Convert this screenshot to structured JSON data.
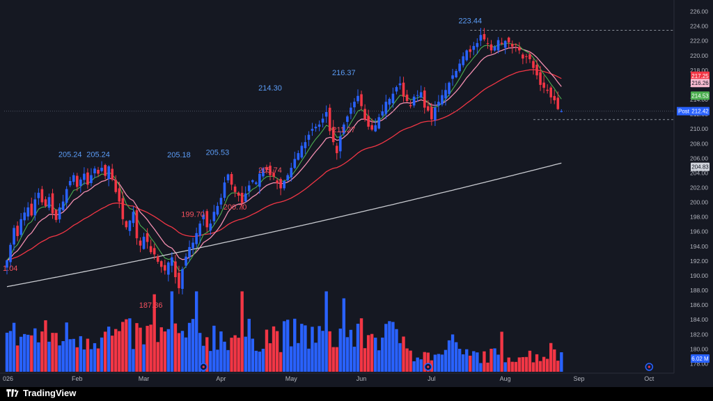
{
  "chart_data": {
    "type": "candlestick",
    "title": "",
    "ylim": [
      177,
      227
    ],
    "y_ticks": [
      "226.00",
      "224.00",
      "222.00",
      "220.00",
      "218.00",
      "216.00",
      "214.00",
      "212.00",
      "210.00",
      "208.00",
      "206.00",
      "204.00",
      "202.00",
      "200.00",
      "198.00",
      "196.00",
      "194.00",
      "192.00",
      "190.00",
      "188.00",
      "186.00",
      "184.00",
      "182.00",
      "180.00",
      "178.00"
    ],
    "x_ticks": [
      {
        "label": "026",
        "i": 0
      },
      {
        "label": "Feb",
        "i": 20
      },
      {
        "label": "Mar",
        "i": 39
      },
      {
        "label": "Apr",
        "i": 61
      },
      {
        "label": "May",
        "i": 81
      },
      {
        "label": "Jun",
        "i": 101
      },
      {
        "label": "Jul",
        "i": 121
      },
      {
        "label": "Aug",
        "i": 142
      },
      {
        "label": "Sep",
        "i": 163
      },
      {
        "label": "Oct",
        "i": 183
      }
    ],
    "closes": [
      192.1,
      194.2,
      196.5,
      195.4,
      197.7,
      198.6,
      199.3,
      198.2,
      200.4,
      201.3,
      200.0,
      199.5,
      200.7,
      198.5,
      197.6,
      199.3,
      200.1,
      201.8,
      202.9,
      203.7,
      202.1,
      203.1,
      203.9,
      202.4,
      203.7,
      204.6,
      203.9,
      204.7,
      203.6,
      204.9,
      203.1,
      201.4,
      200.1,
      197.7,
      196.6,
      197.5,
      198.7,
      195.1,
      194.1,
      195.3,
      194.6,
      193.2,
      192.9,
      191.9,
      191.2,
      190.7,
      191.8,
      192.5,
      189.8,
      188.3,
      190.9,
      192.6,
      193.9,
      194.5,
      195.8,
      197.1,
      198.3,
      196.6,
      197.1,
      198.7,
      199.5,
      200.6,
      202.7,
      203.8,
      202.4,
      201.4,
      200.9,
      199.9,
      201.2,
      202.3,
      203.0,
      202.7,
      203.9,
      204.6,
      204.4,
      203.7,
      203.5,
      202.6,
      201.9,
      202.9,
      203.7,
      204.7,
      205.9,
      206.7,
      207.7,
      208.2,
      209.2,
      210.0,
      210.3,
      210.6,
      211.4,
      212.3,
      209.7,
      208.2,
      206.7,
      209.0,
      210.6,
      211.7,
      212.9,
      213.7,
      214.5,
      213.1,
      211.3,
      210.3,
      209.9,
      210.5,
      211.6,
      212.4,
      213.7,
      214.1,
      214.8,
      215.7,
      216.2,
      214.4,
      213.8,
      213.1,
      214.4,
      214.6,
      215.0,
      212.9,
      212.5,
      211.3,
      212.9,
      213.7,
      214.6,
      215.3,
      216.3,
      217.3,
      217.9,
      218.9,
      219.9,
      220.7,
      220.5,
      221.3,
      221.7,
      222.8,
      222.2,
      221.6,
      220.7,
      221.2,
      222.1,
      221.6,
      222.0,
      221.8,
      221.2,
      221.5,
      220.7,
      219.6,
      219.8,
      219.5,
      218.3,
      217.3,
      216.0,
      215.6,
      215.2,
      214.3,
      213.9,
      212.7,
      212.4
    ],
    "ma_series": [
      {
        "color": "#4caf50",
        "period": "short"
      },
      {
        "color": "#f48fb1",
        "period": "medium"
      },
      {
        "color": "#f23645",
        "period": "long"
      },
      {
        "color": "#c9cbd1",
        "period": "longest"
      }
    ],
    "annotations": [
      {
        "text": "205.24",
        "i": 18,
        "price": 205.24,
        "pos": "above",
        "color": "#5b9cf6"
      },
      {
        "text": "205.24",
        "i": 26,
        "price": 205.24,
        "pos": "above",
        "color": "#5b9cf6"
      },
      {
        "text": "205.18",
        "i": 49,
        "price": 205.18,
        "pos": "above",
        "color": "#5b9cf6"
      },
      {
        "text": "205.53",
        "i": 60,
        "price": 205.53,
        "pos": "above",
        "color": "#5b9cf6"
      },
      {
        "text": "214.30",
        "i": 75,
        "price": 214.3,
        "pos": "above",
        "color": "#5b9cf6"
      },
      {
        "text": "216.37",
        "i": 96,
        "price": 216.37,
        "pos": "above",
        "color": "#5b9cf6"
      },
      {
        "text": "223.44",
        "i": 132,
        "price": 223.44,
        "pos": "above",
        "color": "#5b9cf6"
      },
      {
        "text": "187.36",
        "i": 41,
        "price": 187.36,
        "pos": "below",
        "color": "#f7525f"
      },
      {
        "text": "199.70",
        "i": 53,
        "price": 199.7,
        "pos": "below",
        "color": "#f7525f"
      },
      {
        "text": "200.70",
        "i": 65,
        "price": 200.7,
        "pos": "below",
        "color": "#f7525f"
      },
      {
        "text": "205.74",
        "i": 75,
        "price": 205.74,
        "pos": "below",
        "color": "#f7525f"
      },
      {
        "text": "211.27",
        "i": 96,
        "price": 211.27,
        "pos": "below",
        "color": "#f7525f"
      },
      {
        "text": "1.04",
        "i": 0,
        "price": 191.04,
        "pos": "left",
        "color": "#f7525f"
      }
    ],
    "price_tags": [
      {
        "text": "217.25",
        "price": 217.25,
        "bg": "#f23645",
        "fg": "#ffffff"
      },
      {
        "text": "216.26",
        "price": 216.26,
        "bg": "#f8bbd0",
        "fg": "#131722"
      },
      {
        "text": "214.53",
        "price": 214.53,
        "bg": "#4caf50",
        "fg": "#ffffff"
      },
      {
        "text": "212.42",
        "price": 212.42,
        "bg": "#2962ff",
        "fg": "#ffffff",
        "prefix": "Post"
      },
      {
        "text": "204.83",
        "price": 204.83,
        "bg": "#d1d4dc",
        "fg": "#131722"
      }
    ],
    "volume_tag": {
      "text": "6.02 M",
      "bg": "#2962ff",
      "fg": "#ffffff"
    },
    "up_color": "#2962ff",
    "down_color": "#f23645",
    "grid": "off",
    "legend": "none"
  },
  "footer": {
    "brand": "TradingView"
  }
}
